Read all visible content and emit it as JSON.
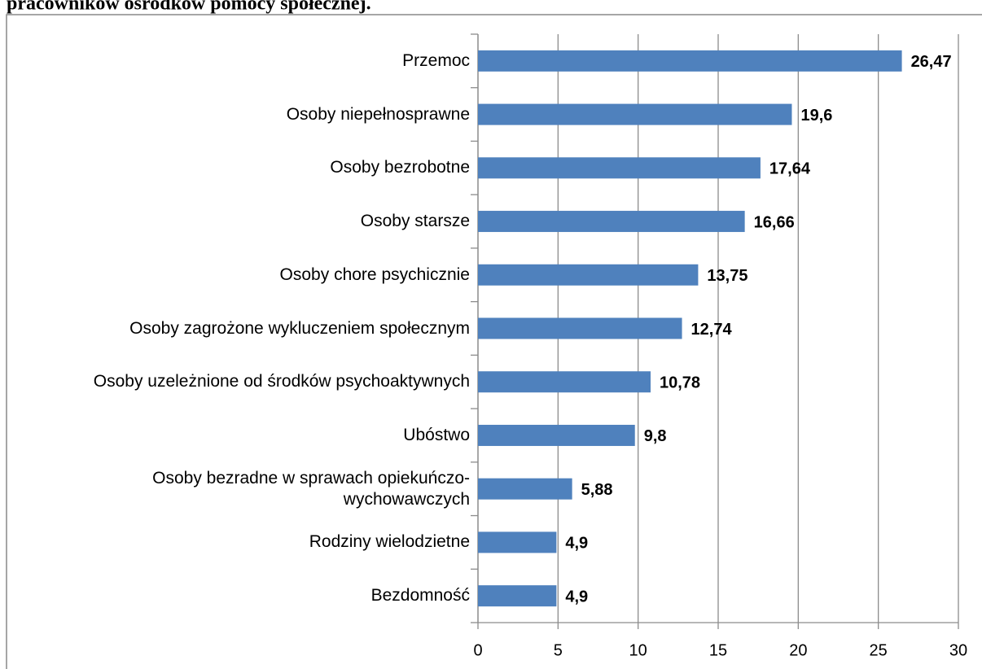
{
  "chart_data": {
    "type": "bar",
    "orientation": "horizontal",
    "title": "pracowników ośrodków pomocy społecznej.",
    "categories": [
      "Przemoc",
      "Osoby niepełnosprawne",
      "Osoby bezrobotne",
      "Osoby starsze",
      "Osoby chore psychicznie",
      "Osoby zagrożone wykluczeniem społecznym",
      "Osoby uzeleżnione od środków psychoaktywnych",
      "Ubóstwo",
      "Osoby bezradne w sprawach opiekuńczo-wychowawczych",
      "Rodziny wielodzietne",
      "Bezdomność"
    ],
    "values": [
      26.47,
      19.6,
      17.64,
      16.66,
      13.75,
      12.74,
      10.78,
      9.8,
      5.88,
      4.9,
      4.9
    ],
    "value_labels": [
      "26,47",
      "19,6",
      "17,64",
      "16,66",
      "13,75",
      "12,74",
      "10,78",
      "9,8",
      "5,88",
      "4,9",
      "4,9"
    ],
    "color": "#4f81bd",
    "xlim": [
      0,
      30
    ],
    "xticks": [
      0,
      5,
      10,
      15,
      20,
      25,
      30
    ],
    "grid": true
  }
}
